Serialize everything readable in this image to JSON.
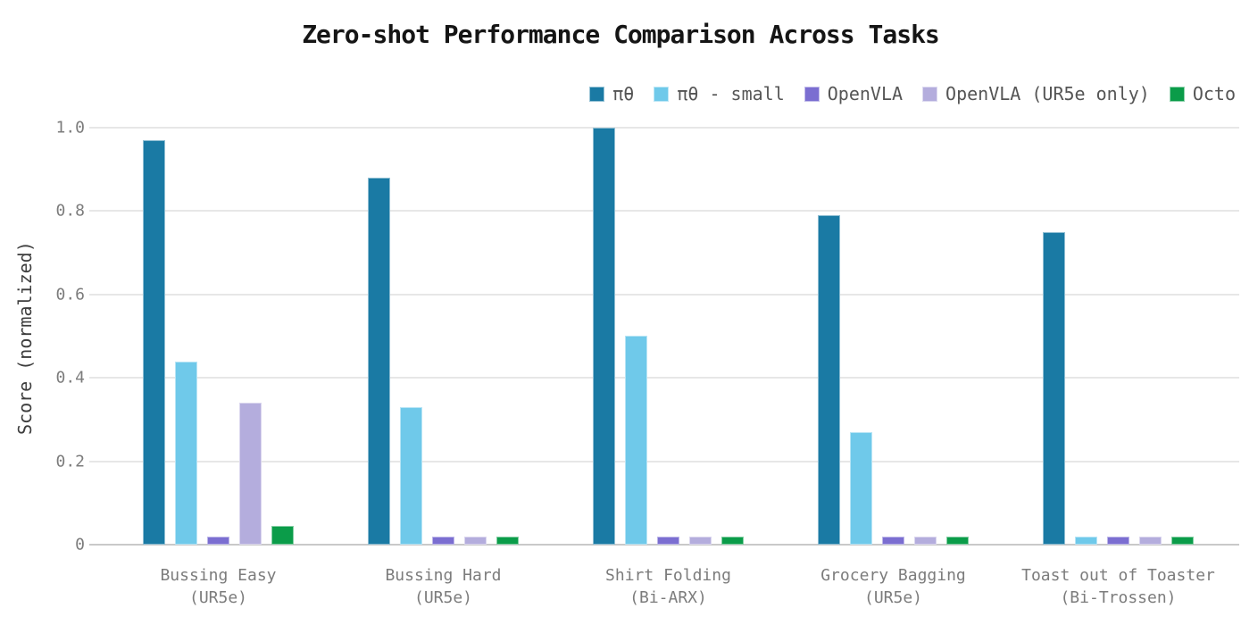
{
  "title": "Zero-shot Performance Comparison Across Tasks",
  "chart_data": {
    "type": "bar",
    "title": "Zero-shot Performance Comparison Across Tasks",
    "xlabel": "",
    "ylabel": "Score (normalized)",
    "ylim": [
      0,
      1.0
    ],
    "yticks": [
      0,
      0.2,
      0.4,
      0.6,
      0.8,
      1.0
    ],
    "ytick_labels": [
      "0",
      "0.2",
      "0.4",
      "0.6",
      "0.8",
      "1.0"
    ],
    "grid": true,
    "legend_position": "top-right",
    "categories": [
      "Bussing Easy\n(UR5e)",
      "Bussing Hard\n(UR5e)",
      "Shirt Folding\n(Bi-ARX)",
      "Grocery Bagging\n(UR5e)",
      "Toast out of Toaster\n(Bi-Trossen)"
    ],
    "series": [
      {
        "name": "πθ",
        "color": "#1A7AA4",
        "values": [
          0.97,
          0.88,
          1.0,
          0.79,
          0.75
        ]
      },
      {
        "name": "πθ - small",
        "color": "#6FC9EA",
        "values": [
          0.44,
          0.33,
          0.5,
          0.27,
          0.02
        ]
      },
      {
        "name": "OpenVLA",
        "color": "#7B6ED1",
        "values": [
          0.02,
          0.02,
          0.02,
          0.02,
          0.02
        ]
      },
      {
        "name": "OpenVLA (UR5e only)",
        "color": "#B4ADDD",
        "values": [
          0.34,
          0.02,
          0.02,
          0.02,
          0.02
        ]
      },
      {
        "name": "Octo",
        "color": "#0B9C49",
        "values": [
          0.045,
          0.02,
          0.02,
          0.02,
          0.02
        ]
      }
    ]
  }
}
